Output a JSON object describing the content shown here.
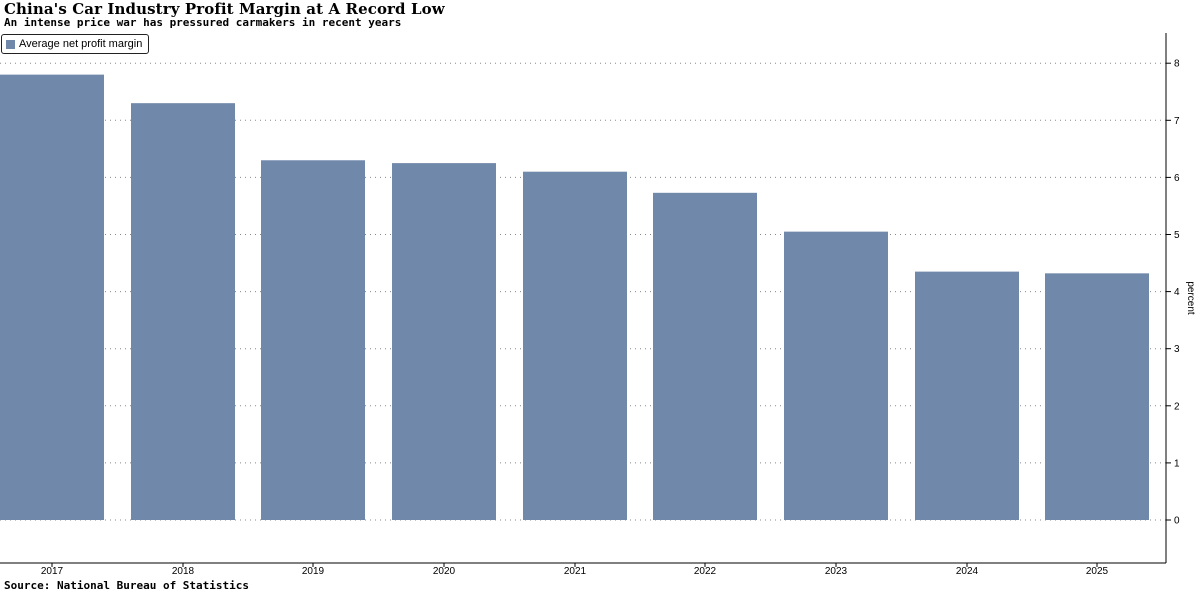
{
  "title": "China's Car Industry Profit Margin at A Record Low",
  "subtitle": "An intense price war has pressured carmakers in recent years",
  "source": "Source: National Bureau of Statistics",
  "colors": {
    "bar": "#7088aa",
    "grid": "#888888",
    "axis": "#000000"
  },
  "chart_data": {
    "type": "bar",
    "categories": [
      "2017",
      "2018",
      "2019",
      "2020",
      "2021",
      "2022",
      "2023",
      "2024",
      "2025"
    ],
    "series": [
      {
        "name": "Average net profit margin",
        "values": [
          7.8,
          7.3,
          6.3,
          6.25,
          6.1,
          5.73,
          5.05,
          4.35,
          4.32
        ]
      }
    ],
    "ylabel": "percent",
    "yticks": [
      "0",
      "1",
      "2",
      "3",
      "4",
      "5",
      "6",
      "7",
      "8"
    ],
    "ylim": [
      -0.75,
      8.5
    ],
    "grid": true,
    "legend_position": "top-left",
    "y_axis_side": "right"
  }
}
